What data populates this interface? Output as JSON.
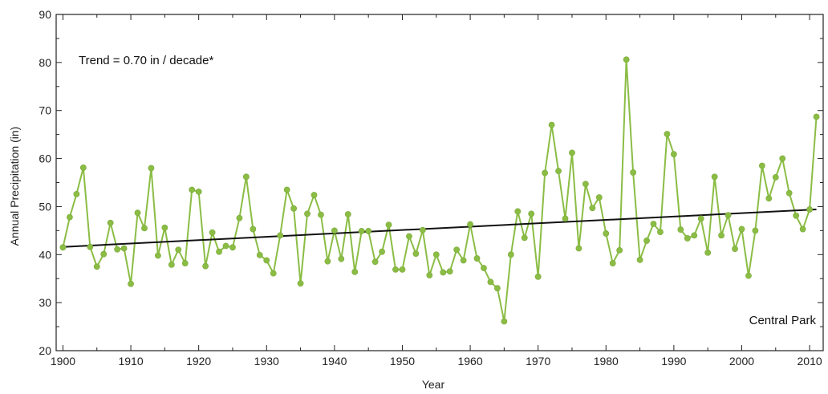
{
  "chart_data": {
    "type": "line",
    "title": "",
    "xlabel": "Year",
    "ylabel": "Annual Precipitation  (in)",
    "xlim": [
      1899,
      2012
    ],
    "ylim": [
      20,
      90
    ],
    "x_ticks": [
      1900,
      1910,
      1920,
      1930,
      1940,
      1950,
      1960,
      1970,
      1980,
      1990,
      2000,
      2010
    ],
    "x_tick_labels": [
      "1900",
      "1910",
      "1920",
      "1930",
      "1940",
      "1950",
      "1960",
      "1970",
      "1980",
      "1990",
      "2000",
      "2010"
    ],
    "y_ticks": [
      20,
      30,
      40,
      50,
      60,
      70,
      80,
      90
    ],
    "y_tick_labels": [
      "20",
      "30",
      "40",
      "50",
      "60",
      "70",
      "80",
      "90"
    ],
    "grid": false,
    "annotations": {
      "trend_text": "Trend = 0.70 in / decade*",
      "location_text": "Central Park"
    },
    "series": [
      {
        "color": "#8bbd45",
        "marker": "circle",
        "x": [
          1900,
          1901,
          1902,
          1903,
          1904,
          1905,
          1906,
          1907,
          1908,
          1909,
          1910,
          1911,
          1912,
          1913,
          1914,
          1915,
          1916,
          1917,
          1918,
          1919,
          1920,
          1921,
          1922,
          1923,
          1924,
          1925,
          1926,
          1927,
          1928,
          1929,
          1930,
          1931,
          1932,
          1933,
          1934,
          1935,
          1936,
          1937,
          1938,
          1939,
          1940,
          1941,
          1942,
          1943,
          1944,
          1945,
          1946,
          1947,
          1948,
          1949,
          1950,
          1951,
          1952,
          1953,
          1954,
          1955,
          1956,
          1957,
          1958,
          1959,
          1960,
          1961,
          1962,
          1963,
          1964,
          1965,
          1966,
          1967,
          1968,
          1969,
          1970,
          1971,
          1972,
          1973,
          1974,
          1975,
          1976,
          1977,
          1978,
          1979,
          1980,
          1981,
          1982,
          1983,
          1984,
          1985,
          1986,
          1987,
          1988,
          1989,
          1990,
          1991,
          1992,
          1993,
          1994,
          1995,
          1996,
          1997,
          1998,
          1999,
          2000,
          2001,
          2002,
          2003,
          2004,
          2005,
          2006,
          2007,
          2008,
          2009,
          2010,
          2011
        ],
        "values": [
          41.5,
          47.8,
          52.6,
          58.1,
          41.6,
          37.5,
          40.1,
          46.6,
          41.1,
          41.3,
          33.9,
          48.7,
          45.5,
          58.0,
          39.8,
          45.6,
          37.9,
          41.0,
          38.2,
          53.5,
          53.1,
          37.6,
          44.6,
          40.6,
          41.8,
          41.5,
          47.6,
          56.2,
          45.3,
          39.9,
          38.8,
          36.1,
          44.0,
          53.5,
          49.6,
          34.0,
          48.5,
          52.4,
          48.3,
          38.6,
          45.0,
          39.1,
          48.4,
          36.4,
          44.9,
          44.9,
          38.5,
          40.6,
          46.2,
          36.9,
          36.9,
          43.8,
          40.2,
          45.1,
          35.7,
          40.0,
          36.3,
          36.5,
          41.0,
          38.8,
          46.3,
          39.2,
          37.2,
          34.3,
          33.0,
          26.1,
          40.0,
          49.0,
          43.5,
          48.5,
          35.4,
          57.0,
          67.0,
          57.4,
          47.5,
          61.2,
          41.3,
          54.7,
          49.7,
          51.9,
          44.4,
          38.2,
          40.9,
          80.6,
          57.1,
          38.9,
          42.9,
          46.4,
          44.7,
          65.1,
          60.9,
          45.2,
          43.4,
          44.0,
          47.5,
          40.4,
          56.2,
          44.0,
          48.2,
          41.2,
          45.3,
          35.6,
          45.0,
          58.5,
          51.7,
          56.1,
          60.0,
          52.8,
          48.1,
          45.3,
          49.4,
          68.7
        ]
      },
      {
        "color": "#111111",
        "style": "trend line",
        "x": [
          1900,
          2011
        ],
        "values": [
          41.6,
          49.4
        ]
      }
    ]
  }
}
